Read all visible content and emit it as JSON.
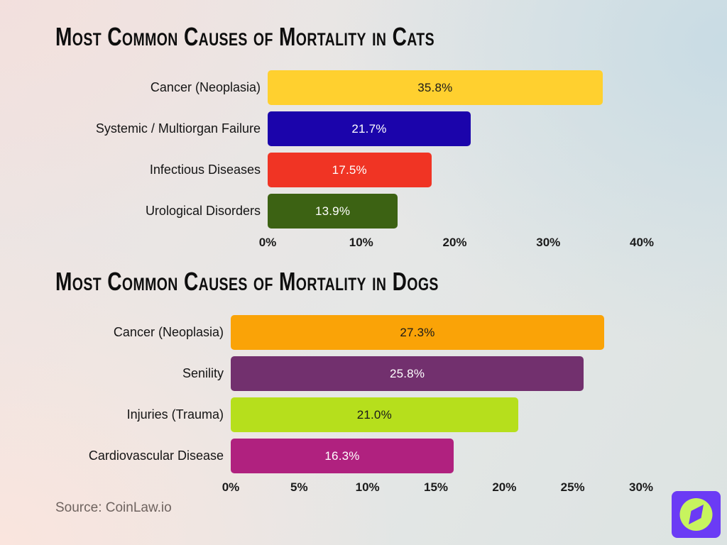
{
  "chart_data": [
    {
      "type": "bar",
      "orientation": "horizontal",
      "title": "Most Common Causes of Mortality in Cats",
      "categories": [
        "Cancer (Neoplasia)",
        "Systemic / Multiorgan Failure",
        "Infectious Diseases",
        "Urological Disorders"
      ],
      "values": [
        35.8,
        21.7,
        17.5,
        13.9
      ],
      "value_labels": [
        "35.8%",
        "21.7%",
        "17.5%",
        "13.9%"
      ],
      "bar_colors": [
        "#FFD02F",
        "#1B04AB",
        "#F03424",
        "#3C6213"
      ],
      "value_label_colors": [
        "#1a1a1a",
        "#ffffff",
        "#ffffff",
        "#ffffff"
      ],
      "xlim": [
        0,
        40
      ],
      "x_ticks": [
        "0%",
        "10%",
        "20%",
        "30%",
        "40%"
      ],
      "grid": false,
      "legend": false
    },
    {
      "type": "bar",
      "orientation": "horizontal",
      "title": "Most Common Causes of Mortality in Dogs",
      "categories": [
        "Cancer (Neoplasia)",
        "Senility",
        "Injuries (Trauma)",
        "Cardiovascular Disease"
      ],
      "values": [
        27.3,
        25.8,
        21.0,
        16.3
      ],
      "value_labels": [
        "27.3%",
        "25.8%",
        "21.0%",
        "16.3%"
      ],
      "bar_colors": [
        "#FAA307",
        "#72306E",
        "#B6DF1C",
        "#B0217F"
      ],
      "value_label_colors": [
        "#1a1a1a",
        "#ffffff",
        "#1a1a1a",
        "#ffffff"
      ],
      "xlim": [
        0,
        30
      ],
      "x_ticks": [
        "0%",
        "5%",
        "10%",
        "15%",
        "20%",
        "25%",
        "30%"
      ],
      "grid": false,
      "legend": false
    }
  ],
  "footer": {
    "source_text": "Source: CoinLaw.io"
  },
  "logo": {
    "name": "coinlaw-compass-logo",
    "square_color": "#6B3BF5",
    "circle_color": "#C7F45E",
    "needle_color": "#6B3BF5"
  }
}
